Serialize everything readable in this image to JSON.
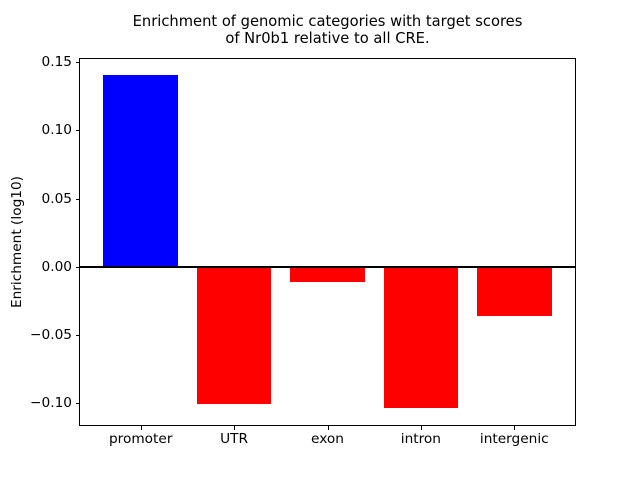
{
  "chart_data": {
    "type": "bar",
    "title_lines": [
      "Enrichment of genomic categories with target scores",
      "of Nr0b1 relative to all CRE."
    ],
    "ylabel": "Enrichment (log10)",
    "xlabel": "",
    "categories": [
      "promoter",
      "UTR",
      "exon",
      "intron",
      "intergenic"
    ],
    "values": [
      0.141,
      -0.101,
      -0.011,
      -0.104,
      -0.036
    ],
    "bar_colors": [
      "#0000ff",
      "#ff0000",
      "#ff0000",
      "#ff0000",
      "#ff0000"
    ],
    "positive_color": "#0000ff",
    "negative_color": "#ff0000",
    "bar_width": 0.8,
    "xlim": [
      -0.65,
      4.65
    ],
    "ylim": [
      -0.1163,
      0.1525
    ],
    "yticks": [
      0.15,
      0.1,
      0.05,
      0.0,
      -0.05,
      -0.1
    ],
    "ytick_labels": [
      "0.15",
      "0.10",
      "0.05",
      "0.00",
      "−0.05",
      "−0.10"
    ],
    "zero_line": true,
    "grid": false,
    "legend": "none",
    "axis_color": "#000000",
    "background_color": "#ffffff"
  }
}
